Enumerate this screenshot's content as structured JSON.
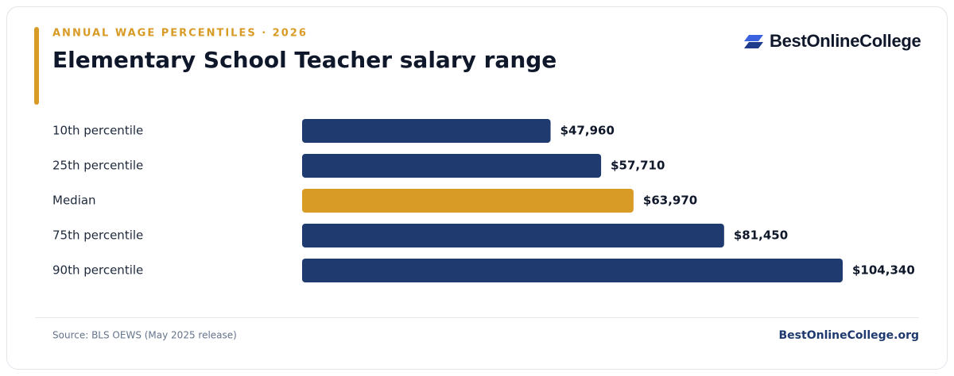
{
  "chart_data": {
    "type": "bar",
    "subtitle": "ANNUAL WAGE PERCENTILES · 2026",
    "title": "Elementary School Teacher salary range",
    "brand": "BestOnlineCollege",
    "categories": [
      "10th percentile",
      "25th percentile",
      "Median",
      "75th percentile",
      "90th percentile"
    ],
    "values": [
      47960,
      57710,
      63970,
      81450,
      104340
    ],
    "value_labels": [
      "$47,960",
      "$57,710",
      "$63,970",
      "$81,450",
      "$104,340"
    ],
    "colors": [
      "#1e3a6e",
      "#1e3a6e",
      "#d89b26",
      "#1e3a6e",
      "#1e3a6e"
    ],
    "source": "Source: BLS OEWS (May 2025 release)",
    "site": "BestOnlineCollege.org"
  }
}
